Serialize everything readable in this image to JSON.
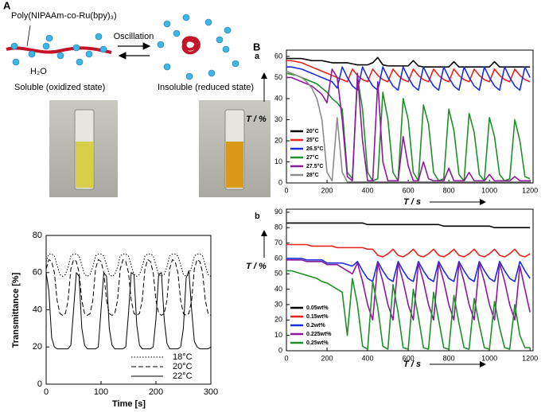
{
  "figure": {
    "panel_A": "A",
    "panel_B": "B"
  },
  "diagram": {
    "polymer": "Poly(NIPAAm-co-Ru(bpy)₃)",
    "water": "H₂O",
    "arrow": "Oscillation",
    "left_state": "Soluble (oxidized state)",
    "right_state": "Insoluble (reduced state)"
  },
  "chart_data": [
    {
      "type": "line",
      "xlabel": "Time [s]",
      "ylabel": "Transmittance [%]",
      "legend": "lower right",
      "xlim": [
        0,
        300
      ],
      "ylim": [
        0,
        80
      ],
      "xticks": [
        0,
        100,
        200,
        300
      ],
      "yticks": [
        0,
        20,
        40,
        60,
        80
      ],
      "x": [
        0,
        5,
        10,
        15,
        20,
        25,
        30,
        35,
        40,
        45,
        50,
        55,
        60,
        65,
        70,
        75,
        80,
        85,
        90,
        95,
        100,
        105,
        110,
        115,
        120,
        125,
        130,
        135,
        140,
        145,
        150,
        155,
        160,
        165,
        170,
        175,
        180,
        185,
        190,
        195,
        200,
        205,
        210,
        215,
        220,
        225,
        230,
        235,
        240,
        245,
        250,
        255,
        260,
        265,
        270,
        275,
        280,
        285,
        290,
        295,
        300
      ],
      "series": [
        {
          "name": "18°C",
          "color": "#000000",
          "style": "dotted",
          "values": [
            66,
            70,
            70,
            69,
            64,
            59,
            58,
            59,
            63,
            69,
            70,
            70,
            69,
            64,
            59,
            58,
            59,
            63,
            69,
            70,
            70,
            69,
            64,
            59,
            58,
            59,
            63,
            69,
            70,
            70,
            69,
            64,
            59,
            58,
            59,
            63,
            69,
            70,
            70,
            69,
            64,
            59,
            58,
            59,
            63,
            69,
            70,
            70,
            69,
            64,
            59,
            58,
            59,
            63,
            69,
            70,
            70,
            69,
            64,
            59,
            58
          ]
        },
        {
          "name": "20°C",
          "color": "#000000",
          "style": "dashed",
          "values": [
            62,
            67,
            66,
            60,
            45,
            38,
            37,
            38,
            45,
            62,
            67,
            66,
            60,
            45,
            38,
            37,
            38,
            45,
            62,
            67,
            66,
            60,
            45,
            38,
            37,
            38,
            45,
            62,
            67,
            66,
            60,
            45,
            38,
            37,
            38,
            45,
            62,
            67,
            66,
            60,
            45,
            38,
            37,
            38,
            45,
            62,
            67,
            66,
            60,
            45,
            38,
            37,
            38,
            45,
            62,
            67,
            66,
            60,
            45,
            38,
            37
          ]
        },
        {
          "name": "22°C",
          "color": "#000000",
          "style": "solid",
          "values": [
            60,
            50,
            25,
            20,
            19,
            19,
            19,
            19,
            19,
            21,
            40,
            60,
            58,
            30,
            21,
            19,
            19,
            19,
            19,
            20,
            40,
            60,
            58,
            30,
            21,
            19,
            19,
            19,
            19,
            20,
            38,
            60,
            59,
            32,
            21,
            19,
            19,
            19,
            19,
            20,
            35,
            59,
            60,
            35,
            22,
            19,
            19,
            19,
            19,
            20,
            30,
            57,
            61,
            40,
            23,
            20,
            19,
            19,
            19,
            19,
            20
          ]
        }
      ]
    },
    {
      "type": "line",
      "label": "a",
      "xlabel": "T / s",
      "ylabel": "T / %",
      "legend": "lower left",
      "xlim": [
        0,
        1215
      ],
      "ylim": [
        0,
        63
      ],
      "xticks": [
        0,
        200,
        400,
        600,
        800,
        1000,
        1200
      ],
      "yticks": [
        0,
        10,
        20,
        30,
        40,
        50,
        60
      ],
      "x": [
        0,
        25,
        50,
        75,
        100,
        125,
        150,
        175,
        200,
        225,
        250,
        275,
        300,
        325,
        350,
        375,
        400,
        425,
        450,
        475,
        500,
        525,
        550,
        575,
        600,
        625,
        650,
        675,
        700,
        725,
        750,
        775,
        800,
        825,
        850,
        875,
        900,
        925,
        950,
        975,
        1000,
        1025,
        1050,
        1075,
        1100,
        1125,
        1150,
        1175,
        1200
      ],
      "series": [
        {
          "name": "20°C",
          "color": "#000000",
          "values": [
            59,
            59,
            59,
            59,
            58.5,
            58,
            58,
            58,
            57.5,
            57,
            57,
            57,
            57,
            56.5,
            56,
            56,
            56,
            57,
            59.5,
            56,
            55.5,
            55.5,
            55.5,
            55.5,
            55.5,
            58,
            55.5,
            55,
            55,
            55,
            55,
            55,
            55,
            57.5,
            55,
            55,
            55,
            55,
            55,
            55,
            55,
            57.5,
            55,
            55,
            55,
            55,
            55,
            55,
            55
          ]
        },
        {
          "name": "25°C",
          "color": "#e8221c",
          "values": [
            58,
            58,
            57.5,
            57,
            56,
            55,
            54,
            53,
            52,
            51,
            50,
            49,
            48,
            54,
            51,
            49,
            48,
            54,
            51,
            49,
            48,
            54,
            51,
            49,
            48,
            54,
            51,
            49,
            48,
            54,
            51,
            49,
            48,
            54,
            51,
            49,
            48,
            54,
            51,
            49,
            48,
            54,
            51,
            49,
            48,
            54,
            51,
            49,
            48
          ]
        },
        {
          "name": "26.5°C",
          "color": "#1a2ee0",
          "values": [
            55,
            55,
            54.5,
            54,
            53,
            52,
            51,
            50,
            49,
            48,
            45,
            55,
            50,
            46,
            44,
            55,
            50,
            46,
            44,
            55,
            50,
            46,
            44,
            55,
            50,
            46,
            44,
            55,
            50,
            46,
            44,
            55,
            50,
            46,
            44,
            55,
            50,
            46,
            44,
            55,
            50,
            46,
            44,
            55,
            50,
            46,
            44,
            55,
            50
          ]
        },
        {
          "name": "27°C",
          "color": "#1f8f2a",
          "values": [
            52,
            51.5,
            51,
            50,
            49,
            48,
            47,
            45,
            43,
            40,
            38,
            35,
            5,
            2,
            50,
            35,
            5,
            1,
            2,
            43,
            30,
            5,
            1,
            40,
            30,
            5,
            1,
            37,
            28,
            5,
            1,
            2,
            35,
            25,
            4,
            1,
            33,
            24,
            4,
            1,
            31,
            22,
            4,
            1,
            2,
            30,
            20,
            3,
            2
          ]
        },
        {
          "name": "27.5°C",
          "color": "#8b1a9a",
          "values": [
            50,
            50,
            49,
            48,
            47,
            46,
            44,
            42,
            38,
            54,
            50,
            30,
            3,
            1,
            52,
            20,
            1,
            1,
            48,
            10,
            1,
            1,
            1,
            22,
            8,
            1,
            1,
            10,
            2,
            1,
            1,
            1,
            7,
            1,
            1,
            1,
            5,
            1,
            1,
            1,
            4,
            1,
            1,
            1,
            1,
            3,
            1,
            1,
            1
          ]
        },
        {
          "name": "28°C",
          "color": "#8c8c8c",
          "values": [
            53,
            52,
            51,
            50,
            48,
            45,
            40,
            30,
            5,
            1,
            31,
            5,
            0.5,
            0.5,
            0.5,
            0.5,
            0.5,
            0.5,
            0.5,
            0.5,
            0.5,
            0.5,
            0.5,
            0.5,
            0.5,
            0.5,
            0.5,
            0.5,
            0.5,
            0.5,
            0.5,
            0.5,
            0.5,
            0.5,
            0.5,
            0.5,
            0.5,
            0.5,
            0.5,
            0.5,
            0.5,
            0.5,
            0.5,
            0.5,
            0.5,
            0.5,
            0.5,
            0.5,
            0.5
          ]
        }
      ]
    },
    {
      "type": "line",
      "label": "b",
      "xlabel": "T / s",
      "ylabel": "T / %",
      "legend": "lower left",
      "xlim": [
        0,
        1215
      ],
      "ylim": [
        0,
        92
      ],
      "xticks": [
        0,
        200,
        400,
        600,
        800,
        1000,
        1200
      ],
      "yticks": [
        0,
        10,
        20,
        30,
        40,
        50,
        60,
        70,
        80,
        90
      ],
      "x": [
        0,
        25,
        50,
        75,
        100,
        125,
        150,
        175,
        200,
        225,
        250,
        275,
        300,
        325,
        350,
        375,
        400,
        425,
        450,
        475,
        500,
        525,
        550,
        575,
        600,
        625,
        650,
        675,
        700,
        725,
        750,
        775,
        800,
        825,
        850,
        875,
        900,
        925,
        950,
        975,
        1000,
        1025,
        1050,
        1075,
        1100,
        1125,
        1150,
        1175,
        1200
      ],
      "series": [
        {
          "name": "0.05wt%",
          "color": "#000000",
          "values": [
            83,
            83,
            83,
            83,
            83,
            83,
            83,
            83,
            83,
            83,
            83,
            83,
            83,
            83,
            83,
            83,
            82,
            82,
            82,
            82,
            82,
            82,
            82,
            82,
            82,
            82,
            82,
            82,
            82,
            82,
            82,
            81,
            81,
            81,
            81,
            81,
            81,
            81,
            81,
            81,
            81,
            80,
            80,
            80,
            80,
            80,
            80,
            80,
            80
          ]
        },
        {
          "name": "0.15wt%",
          "color": "#e8221c",
          "values": [
            69,
            69,
            69,
            69,
            69,
            68,
            68,
            68,
            68,
            68,
            67,
            67,
            67,
            67,
            67,
            67,
            66,
            66,
            62,
            61,
            63,
            66,
            62,
            61,
            63,
            66,
            62,
            61,
            63,
            66,
            62,
            61,
            63,
            66,
            62,
            61,
            63,
            66,
            62,
            61,
            63,
            66,
            62,
            61,
            63,
            66,
            62,
            61,
            63
          ]
        },
        {
          "name": "0.2wt%",
          "color": "#1a2ee0",
          "values": [
            60,
            60,
            60,
            60,
            59,
            59,
            59,
            59,
            57,
            57,
            57,
            57,
            56,
            55,
            58,
            52,
            47,
            45,
            58,
            52,
            47,
            45,
            58,
            52,
            47,
            45,
            58,
            52,
            47,
            45,
            58,
            52,
            47,
            45,
            58,
            52,
            47,
            45,
            58,
            52,
            47,
            45,
            58,
            52,
            47,
            45,
            58,
            52,
            47
          ]
        },
        {
          "name": "0.225wt%",
          "color": "#8b1a9a",
          "values": [
            59,
            59,
            59,
            59,
            58,
            58,
            58,
            58,
            56,
            56,
            56,
            54,
            52,
            50,
            57,
            45,
            30,
            20,
            57,
            45,
            30,
            20,
            57,
            45,
            30,
            20,
            57,
            45,
            30,
            20,
            57,
            45,
            30,
            20,
            57,
            45,
            30,
            20,
            57,
            45,
            30,
            20,
            57,
            45,
            30,
            20,
            55,
            40,
            25
          ]
        },
        {
          "name": "0.25wt%",
          "color": "#1f8f2a",
          "values": [
            52,
            52,
            51,
            50,
            49,
            48,
            47,
            45,
            44,
            42,
            40,
            38,
            10,
            47,
            30,
            3,
            1,
            45,
            28,
            3,
            1,
            43,
            25,
            2,
            1,
            40,
            22,
            2,
            1,
            38,
            20,
            2,
            1,
            36,
            18,
            2,
            1,
            34,
            17,
            2,
            1,
            32,
            15,
            2,
            1,
            30,
            10,
            2,
            2
          ]
        }
      ]
    }
  ]
}
